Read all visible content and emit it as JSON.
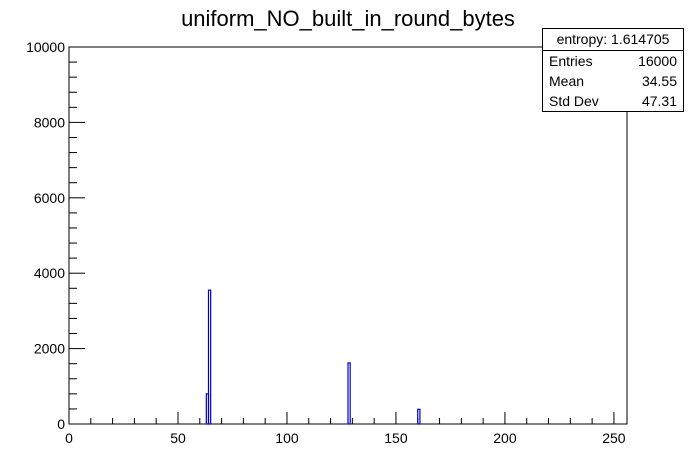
{
  "chart_data": {
    "type": "bar",
    "title": "uniform_NO_built_in_round_bytes",
    "xlabel": "",
    "ylabel": "",
    "xlim": [
      0,
      256
    ],
    "ylim": [
      0,
      10000
    ],
    "x_ticks": [
      "0",
      "50",
      "100",
      "150",
      "200",
      "250"
    ],
    "y_ticks": [
      "0",
      "2000",
      "4000",
      "6000",
      "8000",
      "10000"
    ],
    "x_tick_values": [
      0,
      50,
      100,
      150,
      200,
      250
    ],
    "y_tick_values": [
      0,
      2000,
      4000,
      6000,
      8000,
      10000
    ],
    "bin_width": 1,
    "bins": [
      {
        "x": 63,
        "value": 800
      },
      {
        "x": 64,
        "value": 3550
      },
      {
        "x": 128,
        "value": 1620
      },
      {
        "x": 160,
        "value": 390
      }
    ],
    "grid": false,
    "line_color": "#0000cc"
  },
  "stats": {
    "title": "entropy: 1.614705",
    "rows": [
      {
        "label": "Entries",
        "value": "16000"
      },
      {
        "label": "Mean",
        "value": "34.55"
      },
      {
        "label": "Std Dev",
        "value": "47.31"
      }
    ]
  }
}
